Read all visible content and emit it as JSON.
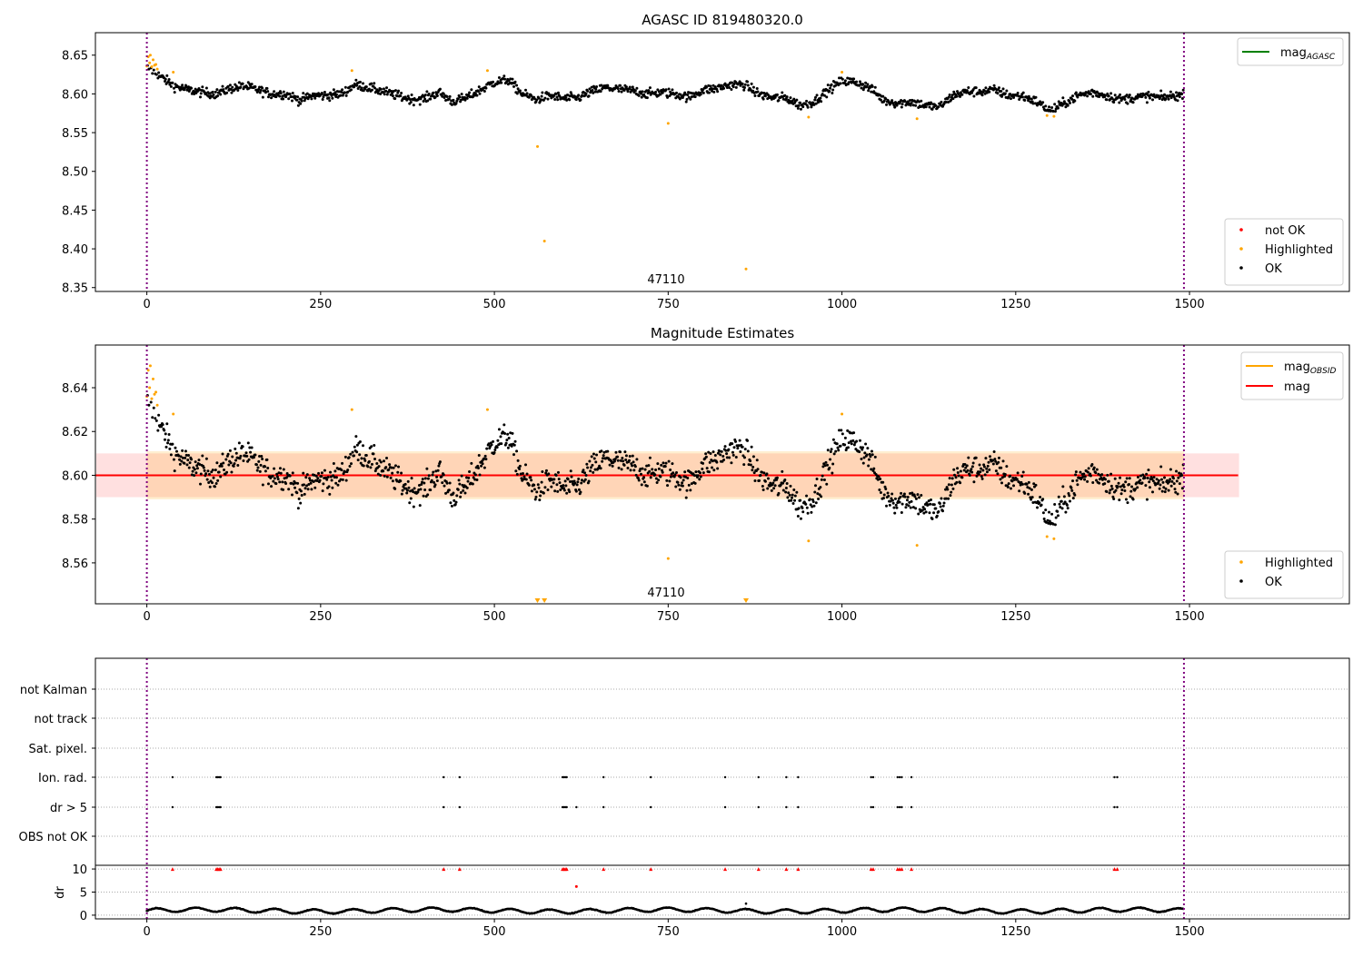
{
  "chart_data": [
    {
      "type": "scatter",
      "title": "AGASC ID 819480320.0",
      "annotation": "47110",
      "xlim": [
        -74,
        1730
      ],
      "ylim": [
        8.345,
        8.679
      ],
      "xticks": [
        "0",
        "250",
        "500",
        "750",
        "1000",
        "1250",
        "1500"
      ],
      "yticks": [
        "8.35",
        "8.40",
        "8.45",
        "8.50",
        "8.55",
        "8.60",
        "8.65"
      ],
      "vlines": [
        0,
        1492
      ],
      "legend_lines": [
        {
          "label": "mag",
          "sub": "AGASC",
          "color": "#008000"
        }
      ],
      "legend_points": [
        {
          "label": "not OK",
          "color": "#ff0000"
        },
        {
          "label": "Highlighted",
          "color": "#ffa500"
        },
        {
          "label": "OK",
          "color": "#000000"
        }
      ]
    },
    {
      "type": "scatter",
      "title": "Magnitude Estimates",
      "annotation": "47110",
      "xlim": [
        -74,
        1730
      ],
      "ylim": [
        8.5413,
        8.6595
      ],
      "xticks": [
        "0",
        "250",
        "500",
        "750",
        "1000",
        "1250",
        "1500"
      ],
      "yticks": [
        "8.56",
        "8.58",
        "8.60",
        "8.62",
        "8.64"
      ],
      "mean_mag": 8.6,
      "band_mag": [
        8.59,
        8.61
      ],
      "band_obsid": [
        8.589,
        8.611
      ],
      "vlines": [
        0,
        1492
      ],
      "legend_lines": [
        {
          "label": "mag",
          "sub": "OBSID",
          "color": "#ffa500"
        },
        {
          "label": "mag",
          "sub": "",
          "color": "#ff0000"
        }
      ],
      "legend_points": [
        {
          "label": "Highlighted",
          "color": "#ffa500"
        },
        {
          "label": "OK",
          "color": "#000000"
        }
      ]
    },
    {
      "type": "scatter",
      "title": "",
      "xlim": [
        -74,
        1730
      ],
      "xticks": [
        "0",
        "250",
        "500",
        "750",
        "1000",
        "1250",
        "1500"
      ],
      "flag_categories": [
        "not Kalman",
        "not track",
        "Sat. pixel.",
        "Ion. rad.",
        "dr > 5",
        "OBS not OK"
      ],
      "ylabel": "dr",
      "dr_yticks": [
        "0",
        "5",
        "10"
      ],
      "dr_ylim": [
        -0.8,
        10.8
      ],
      "vlines": [
        0,
        1492
      ]
    }
  ],
  "series": {
    "trend_step": 20,
    "trend": [
      8.635,
      8.622,
      8.61,
      8.605,
      8.602,
      8.6,
      8.607,
      8.61,
      8.605,
      8.6,
      8.6,
      8.592,
      8.598,
      8.598,
      8.6,
      8.612,
      8.608,
      8.603,
      8.598,
      8.593,
      8.594,
      8.602,
      8.59,
      8.595,
      8.605,
      8.615,
      8.618,
      8.6,
      8.593,
      8.598,
      8.594,
      8.595,
      8.603,
      8.608,
      8.606,
      8.604,
      8.6,
      8.602,
      8.6,
      8.596,
      8.605,
      8.607,
      8.612,
      8.612,
      8.6,
      8.595,
      8.595,
      8.585,
      8.59,
      8.605,
      8.617,
      8.615,
      8.608,
      8.592,
      8.588,
      8.59,
      8.585,
      8.583,
      8.598,
      8.603,
      8.603,
      8.605,
      8.598,
      8.597,
      8.59,
      8.578,
      8.588,
      8.598,
      8.602,
      8.598,
      8.593,
      8.595,
      8.597,
      8.595,
      8.598
    ],
    "n_frames": 1492,
    "highlighted": [
      [
        0,
        8.636
      ],
      [
        2,
        8.648
      ],
      [
        4,
        8.64
      ],
      [
        5,
        8.65
      ],
      [
        7,
        8.635
      ],
      [
        9,
        8.644
      ],
      [
        11,
        8.637
      ],
      [
        13,
        8.638
      ],
      [
        15,
        8.632
      ],
      [
        38,
        8.628
      ],
      [
        295,
        8.63
      ],
      [
        490,
        8.63
      ],
      [
        562,
        8.532
      ],
      [
        572,
        8.41
      ],
      [
        750,
        8.562
      ],
      [
        862,
        8.374
      ],
      [
        952,
        8.57
      ],
      [
        1000,
        8.628
      ],
      [
        1108,
        8.568
      ],
      [
        1295,
        8.572
      ],
      [
        1305,
        8.571
      ]
    ],
    "flag_ion_rad": [
      37,
      100,
      102,
      104,
      106,
      427,
      450,
      598,
      600,
      602,
      604,
      657,
      725,
      832,
      880,
      920,
      937,
      1042,
      1045,
      1080,
      1083,
      1086,
      1100,
      1392,
      1396
    ],
    "flag_dr5": [
      37,
      100,
      102,
      104,
      106,
      427,
      450,
      598,
      600,
      602,
      604,
      618,
      657,
      725,
      832,
      880,
      920,
      937,
      1042,
      1045,
      1080,
      1083,
      1086,
      1100,
      1392,
      1396
    ],
    "dr_outliers_red": [
      [
        618,
        6.2
      ]
    ],
    "dr_outliers_black": [
      [
        862,
        2.5
      ]
    ]
  }
}
